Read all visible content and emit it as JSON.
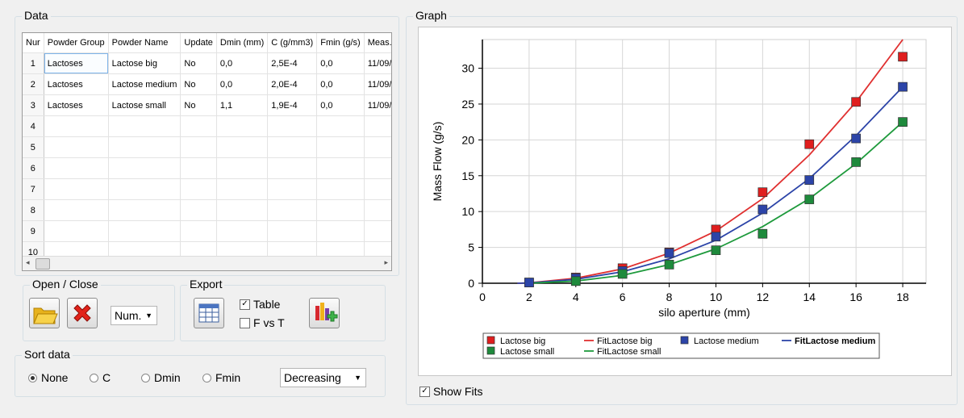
{
  "data_group": {
    "title": "Data",
    "columns": [
      "Nur",
      "Powder Group",
      "Powder Name",
      "Update",
      "Dmin (mm)",
      "C (g/mm3)",
      "Fmin (g/s)",
      "Meas. I"
    ],
    "rows": [
      [
        "1",
        "Lactoses",
        "Lactose big",
        "No",
        "0,0",
        "2,5E-4",
        "0,0",
        "11/09/"
      ],
      [
        "2",
        "Lactoses",
        "Lactose medium",
        "No",
        "0,0",
        "2,0E-4",
        "0,0",
        "11/09/"
      ],
      [
        "3",
        "Lactoses",
        "Lactose small",
        "No",
        "1,1",
        "1,9E-4",
        "0,0",
        "11/09/"
      ],
      [
        "4",
        "",
        "",
        "",
        "",
        "",
        "",
        ""
      ],
      [
        "5",
        "",
        "",
        "",
        "",
        "",
        "",
        ""
      ],
      [
        "6",
        "",
        "",
        "",
        "",
        "",
        "",
        ""
      ],
      [
        "7",
        "",
        "",
        "",
        "",
        "",
        "",
        ""
      ],
      [
        "8",
        "",
        "",
        "",
        "",
        "",
        "",
        ""
      ],
      [
        "9",
        "",
        "",
        "",
        "",
        "",
        "",
        ""
      ],
      [
        "10",
        "",
        "",
        "",
        "",
        "",
        "",
        ""
      ]
    ]
  },
  "open_close": {
    "title": "Open / Close",
    "open_icon": "folder-open-icon",
    "delete_icon": "red-x-icon",
    "sort_select": "Num."
  },
  "export": {
    "title": "Export",
    "table_icon": "table-export-icon",
    "chart_icon": "chart-export-icon",
    "table_label": "Table",
    "table_checked": true,
    "fvst_label": "F vs T",
    "fvst_checked": false
  },
  "sort": {
    "title": "Sort data",
    "options": [
      "None",
      "C",
      "Dmin",
      "Fmin"
    ],
    "selected": "None",
    "order": "Decreasing"
  },
  "graph": {
    "title": "Graph",
    "show_fits_label": "Show Fits",
    "show_fits_checked": true
  },
  "chart_data": {
    "type": "scatter",
    "xlabel": "silo aperture (mm)",
    "ylabel": "Mass Flow (g/s)",
    "xlim": [
      0,
      19
    ],
    "ylim": [
      0,
      34
    ],
    "xticks": [
      0,
      2,
      4,
      6,
      8,
      10,
      12,
      14,
      16,
      18
    ],
    "yticks": [
      0,
      5,
      10,
      15,
      20,
      25,
      30
    ],
    "grid": true,
    "legend_position": "bottom",
    "series": [
      {
        "name": "Lactose big",
        "kind": "points",
        "color": "#e01e1e",
        "points": [
          [
            2,
            0.1
          ],
          [
            4,
            0.8
          ],
          [
            6,
            2.1
          ],
          [
            8,
            4.3
          ],
          [
            10,
            7.5
          ],
          [
            12,
            12.7
          ],
          [
            14,
            19.4
          ],
          [
            16,
            25.3
          ],
          [
            18,
            31.6
          ]
        ]
      },
      {
        "name": "FitLactose big",
        "kind": "line",
        "color": "#e03030",
        "points": [
          [
            1.5,
            0
          ],
          [
            2,
            0.06
          ],
          [
            4,
            0.7
          ],
          [
            6,
            2.0
          ],
          [
            8,
            4.2
          ],
          [
            10,
            7.3
          ],
          [
            12,
            11.8
          ],
          [
            14,
            17.9
          ],
          [
            16,
            25.3
          ],
          [
            18,
            34.0
          ]
        ]
      },
      {
        "name": "Lactose medium",
        "kind": "points",
        "color": "#2c44a8",
        "points": [
          [
            2,
            0.1
          ],
          [
            4,
            0.7
          ],
          [
            6,
            1.7
          ],
          [
            8,
            4.2
          ],
          [
            10,
            6.5
          ],
          [
            12,
            10.3
          ],
          [
            14,
            14.4
          ],
          [
            16,
            20.2
          ],
          [
            18,
            27.4
          ]
        ]
      },
      {
        "name": "FitLactose medium",
        "kind": "line",
        "color": "#2c44a8",
        "points": [
          [
            1.5,
            0
          ],
          [
            2,
            0.05
          ],
          [
            4,
            0.55
          ],
          [
            6,
            1.6
          ],
          [
            8,
            3.4
          ],
          [
            10,
            6.0
          ],
          [
            12,
            9.8
          ],
          [
            14,
            14.6
          ],
          [
            16,
            20.6
          ],
          [
            18,
            27.4
          ]
        ]
      },
      {
        "name": "Lactose small",
        "kind": "points",
        "color": "#1e8a3c",
        "points": [
          [
            4,
            0.3
          ],
          [
            6,
            1.3
          ],
          [
            8,
            2.6
          ],
          [
            10,
            4.6
          ],
          [
            12,
            6.9
          ],
          [
            14,
            11.7
          ],
          [
            16,
            16.9
          ],
          [
            18,
            22.5
          ]
        ]
      },
      {
        "name": "FitLactose small",
        "kind": "line",
        "color": "#1e9a3c",
        "points": [
          [
            2,
            0
          ],
          [
            4,
            0.3
          ],
          [
            6,
            1.1
          ],
          [
            8,
            2.6
          ],
          [
            10,
            4.8
          ],
          [
            12,
            7.9
          ],
          [
            14,
            11.8
          ],
          [
            16,
            16.7
          ],
          [
            18,
            22.5
          ]
        ]
      }
    ],
    "legend": [
      "Lactose big",
      "FitLactose big",
      "Lactose medium",
      "FitLactose medium",
      "Lactose small",
      "FitLactose small"
    ]
  }
}
